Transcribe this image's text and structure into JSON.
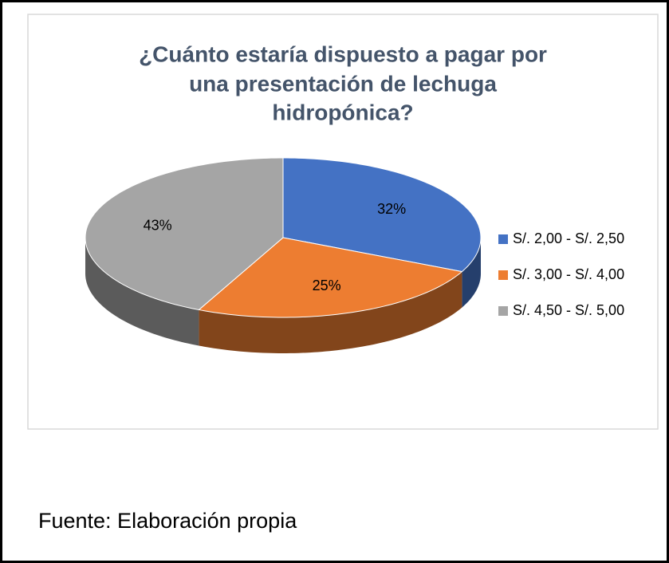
{
  "chart_data": {
    "type": "pie",
    "title": [
      "¿Cuánto estaría dispuesto a pagar por",
      "una presentación de lechuga",
      "hidropónica?"
    ],
    "categories": [
      "S/. 2,00 - S/. 2,50",
      "S/. 3,00 - S/. 4,00",
      "S/. 4,50 - S/. 5,00"
    ],
    "values": [
      32,
      25,
      43
    ],
    "value_labels": [
      "32%",
      "25%",
      "43%"
    ],
    "colors": [
      "#4472c4",
      "#ed7d31",
      "#a5a5a5"
    ],
    "legend": "right"
  },
  "source": "Fuente: Elaboración propia"
}
